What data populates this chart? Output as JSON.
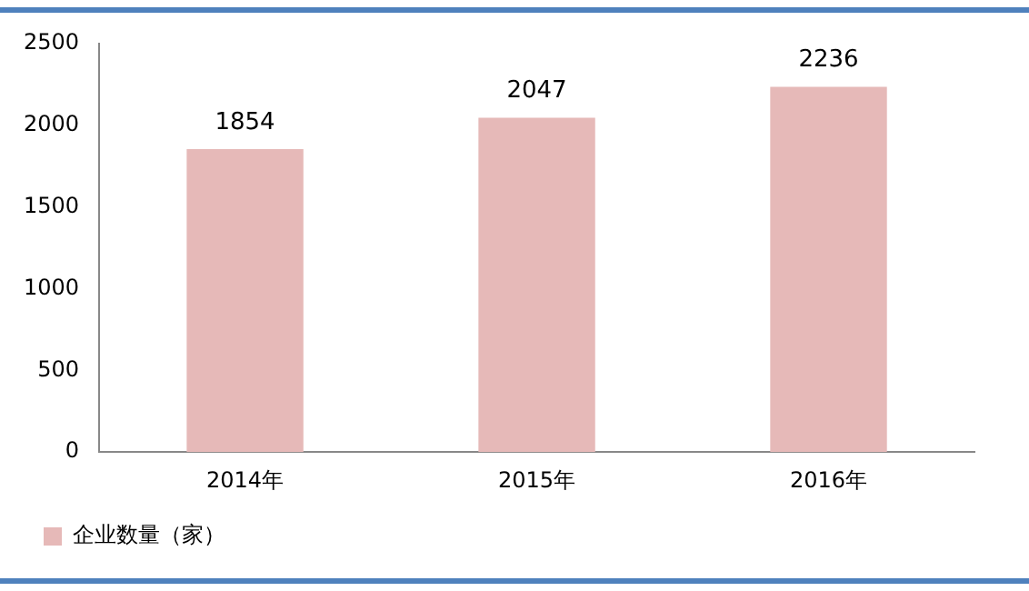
{
  "chart_data": {
    "type": "bar",
    "categories": [
      "2014年",
      "2015年",
      "2016年"
    ],
    "series": [
      {
        "name": "企业数量（家）",
        "color": "#e6b9b8",
        "values": [
          1854,
          2047,
          2236
        ]
      }
    ],
    "ylim": [
      0,
      2500
    ],
    "yticks": [
      0,
      500,
      1000,
      1500,
      2000,
      2500
    ],
    "grid": false,
    "legend": "bottom",
    "data_labels": true
  }
}
